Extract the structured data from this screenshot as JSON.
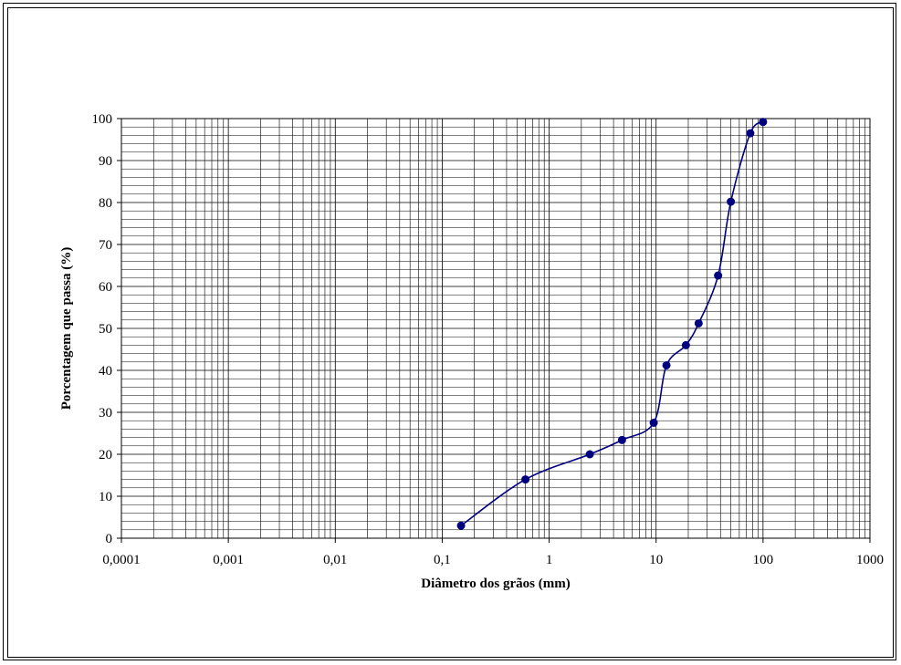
{
  "chart_data": {
    "type": "line",
    "title": "",
    "xlabel": "Diâmetro dos grãos (mm)",
    "ylabel": "Porcentagem que passa (%)",
    "x_scale": "log",
    "xlim": [
      0.0001,
      1000
    ],
    "ylim": [
      0,
      100
    ],
    "x_tick_labels": [
      "0,0001",
      "0,001",
      "0,01",
      "0,1",
      "1",
      "10",
      "100",
      "1000"
    ],
    "y_tick_labels": [
      "0",
      "10",
      "20",
      "30",
      "40",
      "50",
      "60",
      "70",
      "80",
      "90",
      "100"
    ],
    "grid": true,
    "legend": "none",
    "series": [
      {
        "color": "#000080",
        "marker": "circle",
        "smooth": true,
        "x": [
          0.15,
          0.6,
          2.4,
          4.8,
          9.5,
          12.5,
          19,
          25,
          38,
          50,
          76,
          100
        ],
        "y": [
          3,
          14,
          20,
          23.4,
          27.5,
          41.2,
          46,
          51.2,
          62.6,
          80.2,
          96.5,
          99.2
        ]
      }
    ]
  }
}
